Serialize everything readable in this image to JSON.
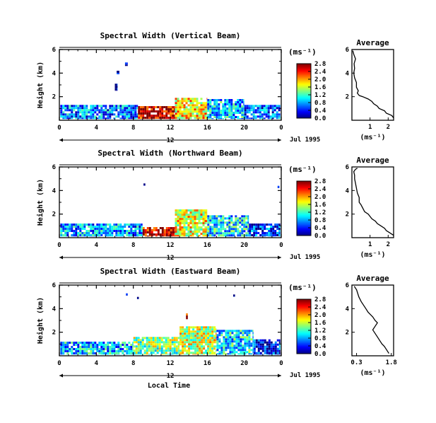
{
  "figure": {
    "xlabel": "Local Time",
    "date_label": "Jul 1995",
    "mid_label": "12",
    "avg_title": "Average",
    "colorbar_unit": "(ms⁻¹)",
    "avg_unit": "(ms⁻¹)"
  },
  "chart_data": [
    {
      "type": "heatmap",
      "title": "Spectral Width (Vertical Beam)",
      "ylabel": "Height (km)",
      "xlim": [
        0,
        24
      ],
      "ylim": [
        0,
        6
      ],
      "xticks": [
        "0",
        "4",
        "8",
        "12",
        "16",
        "20",
        "0"
      ],
      "yticks": [
        "2",
        "4",
        "6"
      ],
      "colorbar_ticks": [
        "0.0",
        "0.4",
        "0.8",
        "1.2",
        "1.6",
        "2.0",
        "2.4",
        "2.8"
      ],
      "colorbar_range": [
        0,
        2.8
      ],
      "blocks": [
        {
          "t0": 0.1,
          "t1": 8.5,
          "h0": 0.1,
          "h1": 1.3,
          "v": 0.7
        },
        {
          "t0": 8.5,
          "t1": 12.5,
          "h0": 0.1,
          "h1": 1.2,
          "v": 2.6
        },
        {
          "t0": 12.5,
          "t1": 16.0,
          "h0": 0.1,
          "h1": 1.9,
          "v": 1.8
        },
        {
          "t0": 16.0,
          "t1": 20.0,
          "h0": 0.1,
          "h1": 1.8,
          "v": 0.9
        },
        {
          "t0": 20.0,
          "t1": 23.9,
          "h0": 0.1,
          "h1": 1.3,
          "v": 0.6
        },
        {
          "t0": 6.0,
          "t1": 6.3,
          "h0": 2.5,
          "h1": 3.1,
          "v": 0.1
        },
        {
          "t0": 6.2,
          "t1": 6.5,
          "h0": 3.9,
          "h1": 4.2,
          "v": 0.1
        },
        {
          "t0": 7.1,
          "t1": 7.4,
          "h0": 4.6,
          "h1": 4.9,
          "v": 0.1
        }
      ],
      "average": {
        "title": "Average",
        "xlim": [
          0,
          2.3
        ],
        "xticks": [
          {
            "v": 1,
            "t": "1"
          },
          {
            "v": 2,
            "t": "2"
          }
        ],
        "ylim": [
          0,
          6
        ],
        "yticks": [
          "2",
          "4",
          "6"
        ],
        "x": [
          2.3,
          2.2,
          1.9,
          1.8,
          1.5,
          1.4,
          1.2,
          1.1,
          0.9,
          0.6,
          0.4,
          0.3,
          0.35,
          0.25,
          0.25,
          0.15,
          0.1,
          0.15,
          0.12,
          0.2,
          0.1,
          0.05
        ],
        "y": [
          0.2,
          0.4,
          0.6,
          0.8,
          1.0,
          1.2,
          1.4,
          1.6,
          1.8,
          2.0,
          2.1,
          2.3,
          2.5,
          2.8,
          3.2,
          3.6,
          4.0,
          4.4,
          4.8,
          5.2,
          5.6,
          5.9
        ]
      }
    },
    {
      "type": "heatmap",
      "title": "Spectral Width (Northward Beam)",
      "ylabel": "Height (km)",
      "xlim": [
        0,
        24
      ],
      "ylim": [
        0,
        6
      ],
      "xticks": [
        "0",
        "4",
        "8",
        "12",
        "16",
        "20",
        "0"
      ],
      "yticks": [
        "2",
        "4",
        "6"
      ],
      "colorbar_ticks": [
        "0.0",
        "0.4",
        "0.8",
        "1.2",
        "1.6",
        "2.0",
        "2.4",
        "2.8"
      ],
      "colorbar_range": [
        0,
        2.8
      ],
      "blocks": [
        {
          "t0": 0.1,
          "t1": 9.0,
          "h0": 0.1,
          "h1": 1.2,
          "v": 0.8
        },
        {
          "t0": 9.0,
          "t1": 12.5,
          "h0": 0.1,
          "h1": 0.9,
          "v": 2.6
        },
        {
          "t0": 12.5,
          "t1": 16.0,
          "h0": 0.1,
          "h1": 2.4,
          "v": 1.7
        },
        {
          "t0": 16.0,
          "t1": 20.5,
          "h0": 0.1,
          "h1": 1.9,
          "v": 1.0
        },
        {
          "t0": 20.5,
          "t1": 23.9,
          "h0": 0.1,
          "h1": 1.2,
          "v": 0.5
        },
        {
          "t0": 9.1,
          "t1": 9.3,
          "h0": 4.4,
          "h1": 4.6,
          "v": 0.1
        },
        {
          "t0": 23.6,
          "t1": 23.8,
          "h0": 4.2,
          "h1": 4.4,
          "v": 0.1
        }
      ],
      "average": {
        "title": "Average",
        "xlim": [
          0,
          2.3
        ],
        "xticks": [
          {
            "v": 1,
            "t": "1"
          },
          {
            "v": 2,
            "t": "2"
          }
        ],
        "ylim": [
          0,
          6
        ],
        "yticks": [
          "2",
          "4",
          "6"
        ],
        "x": [
          2.3,
          2.1,
          1.9,
          1.8,
          1.6,
          1.4,
          1.3,
          1.1,
          1.0,
          0.9,
          0.7,
          0.6,
          0.5,
          0.4,
          0.4,
          0.3,
          0.25,
          0.2,
          0.15,
          0.15,
          0.1,
          0.2,
          0.3
        ],
        "y": [
          0.2,
          0.4,
          0.6,
          0.8,
          1.0,
          1.2,
          1.4,
          1.6,
          1.8,
          2.0,
          2.2,
          2.5,
          2.8,
          3.0,
          3.4,
          3.8,
          4.2,
          4.6,
          5.0,
          5.3,
          5.6,
          5.8,
          5.9
        ]
      }
    },
    {
      "type": "heatmap",
      "title": "Spectral Width (Eastward Beam)",
      "ylabel": "Height (km)",
      "xlim": [
        0,
        24
      ],
      "ylim": [
        0,
        6
      ],
      "xticks": [
        "0",
        "4",
        "8",
        "12",
        "16",
        "20",
        "0"
      ],
      "yticks": [
        "2",
        "4",
        "6"
      ],
      "colorbar_ticks": [
        "0.0",
        "0.4",
        "0.8",
        "1.2",
        "1.6",
        "2.0",
        "2.4",
        "2.8"
      ],
      "colorbar_range": [
        0,
        2.8
      ],
      "blocks": [
        {
          "t0": 0.1,
          "t1": 8.0,
          "h0": 0.1,
          "h1": 1.2,
          "v": 0.9
        },
        {
          "t0": 8.0,
          "t1": 13.0,
          "h0": 0.1,
          "h1": 1.6,
          "v": 1.4
        },
        {
          "t0": 13.0,
          "t1": 17.0,
          "h0": 0.1,
          "h1": 2.5,
          "v": 1.6
        },
        {
          "t0": 17.0,
          "t1": 21.0,
          "h0": 0.1,
          "h1": 2.2,
          "v": 1.0
        },
        {
          "t0": 21.0,
          "t1": 23.9,
          "h0": 0.1,
          "h1": 1.4,
          "v": 0.4
        },
        {
          "t0": 13.7,
          "t1": 13.9,
          "h0": 3.1,
          "h1": 3.6,
          "v": 2.7
        },
        {
          "t0": 7.2,
          "t1": 7.4,
          "h0": 5.1,
          "h1": 5.3,
          "v": 0.1
        },
        {
          "t0": 8.4,
          "t1": 8.6,
          "h0": 4.8,
          "h1": 5.0,
          "v": 0.1
        },
        {
          "t0": 18.8,
          "t1": 19.0,
          "h0": 5.0,
          "h1": 5.2,
          "v": 0.1
        }
      ],
      "average": {
        "title": "Average",
        "xlim": [
          0.1,
          1.9
        ],
        "xticks": [
          {
            "v": 0.3,
            "t": "0.3"
          },
          {
            "v": 1.8,
            "t": "1.8"
          }
        ],
        "ylim": [
          0,
          6
        ],
        "yticks": [
          "2",
          "4",
          "6"
        ],
        "x": [
          1.7,
          1.6,
          1.5,
          1.4,
          1.3,
          1.2,
          1.1,
          1.0,
          1.1,
          1.2,
          1.1,
          1.0,
          0.9,
          0.8,
          0.7,
          0.6,
          0.5,
          0.4,
          0.35,
          0.3,
          0.2
        ],
        "y": [
          0.2,
          0.5,
          0.8,
          1.0,
          1.3,
          1.6,
          1.9,
          2.2,
          2.5,
          2.8,
          3.0,
          3.3,
          3.5,
          3.7,
          4.0,
          4.3,
          4.6,
          5.0,
          5.3,
          5.6,
          5.9
        ]
      }
    }
  ]
}
